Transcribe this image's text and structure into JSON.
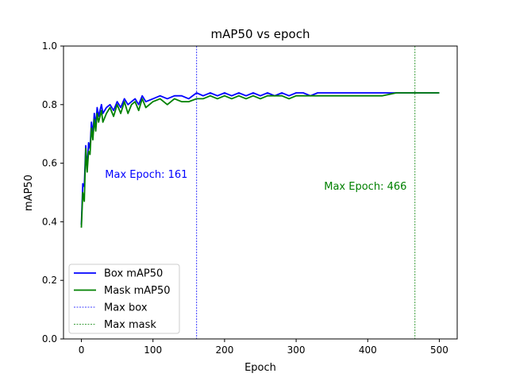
{
  "chart_data": {
    "type": "line",
    "title": "mAP50 vs epoch",
    "xlabel": "Epoch",
    "ylabel": "mAP50",
    "xlim": [
      -25,
      525
    ],
    "ylim": [
      0.0,
      1.0
    ],
    "x_ticks": [
      0,
      100,
      200,
      300,
      400,
      500
    ],
    "x_tick_labels": [
      "0",
      "100",
      "200",
      "300",
      "400",
      "500"
    ],
    "y_ticks": [
      0.0,
      0.2,
      0.4,
      0.6,
      0.8,
      1.0
    ],
    "y_tick_labels": [
      "0.0",
      "0.2",
      "0.4",
      "0.6",
      "0.8",
      "1.0"
    ],
    "grid": false,
    "legend_position": "lower-left",
    "series": [
      {
        "name": "Box mAP50",
        "color": "#0000ff",
        "x": [
          0,
          2,
          4,
          6,
          8,
          10,
          12,
          14,
          16,
          18,
          20,
          22,
          24,
          26,
          28,
          30,
          35,
          40,
          45,
          50,
          55,
          60,
          65,
          70,
          75,
          80,
          85,
          90,
          100,
          110,
          120,
          130,
          140,
          150,
          161,
          170,
          180,
          190,
          200,
          210,
          220,
          230,
          240,
          250,
          260,
          270,
          280,
          290,
          300,
          310,
          320,
          330,
          340,
          350,
          360,
          380,
          400,
          420,
          440,
          466,
          480,
          500
        ],
        "y": [
          0.39,
          0.53,
          0.52,
          0.66,
          0.58,
          0.67,
          0.65,
          0.74,
          0.7,
          0.77,
          0.73,
          0.79,
          0.76,
          0.78,
          0.8,
          0.77,
          0.79,
          0.8,
          0.78,
          0.81,
          0.79,
          0.82,
          0.8,
          0.81,
          0.82,
          0.8,
          0.83,
          0.81,
          0.82,
          0.83,
          0.82,
          0.83,
          0.83,
          0.82,
          0.84,
          0.83,
          0.84,
          0.83,
          0.84,
          0.83,
          0.84,
          0.83,
          0.84,
          0.83,
          0.84,
          0.83,
          0.84,
          0.83,
          0.84,
          0.84,
          0.83,
          0.84,
          0.84,
          0.84,
          0.84,
          0.84,
          0.84,
          0.84,
          0.84,
          0.84,
          0.84,
          0.84
        ]
      },
      {
        "name": "Mask mAP50",
        "color": "#008000",
        "x": [
          0,
          2,
          4,
          6,
          8,
          10,
          12,
          14,
          16,
          18,
          20,
          22,
          24,
          26,
          28,
          30,
          35,
          40,
          45,
          50,
          55,
          60,
          65,
          70,
          75,
          80,
          85,
          90,
          100,
          110,
          120,
          130,
          140,
          150,
          161,
          170,
          180,
          190,
          200,
          210,
          220,
          230,
          240,
          250,
          260,
          270,
          280,
          290,
          300,
          310,
          320,
          330,
          340,
          350,
          360,
          380,
          400,
          420,
          440,
          466,
          480,
          500
        ],
        "y": [
          0.38,
          0.5,
          0.47,
          0.65,
          0.57,
          0.64,
          0.63,
          0.72,
          0.68,
          0.75,
          0.71,
          0.77,
          0.74,
          0.76,
          0.78,
          0.74,
          0.77,
          0.79,
          0.76,
          0.8,
          0.77,
          0.81,
          0.77,
          0.8,
          0.81,
          0.78,
          0.82,
          0.79,
          0.81,
          0.82,
          0.8,
          0.82,
          0.81,
          0.81,
          0.82,
          0.82,
          0.83,
          0.82,
          0.83,
          0.82,
          0.83,
          0.82,
          0.83,
          0.82,
          0.83,
          0.83,
          0.83,
          0.82,
          0.83,
          0.83,
          0.83,
          0.83,
          0.83,
          0.83,
          0.83,
          0.83,
          0.83,
          0.83,
          0.84,
          0.84,
          0.84,
          0.84
        ]
      }
    ],
    "vlines": [
      {
        "name": "Max box",
        "x": 161,
        "color": "#0000ff",
        "annotation": "Max Epoch: 161",
        "annotation_x": 33,
        "annotation_y": 0.55
      },
      {
        "name": "Max mask",
        "x": 466,
        "color": "#008000",
        "annotation": "Max Epoch: 466",
        "annotation_x": 339,
        "annotation_y": 0.51
      }
    ]
  }
}
